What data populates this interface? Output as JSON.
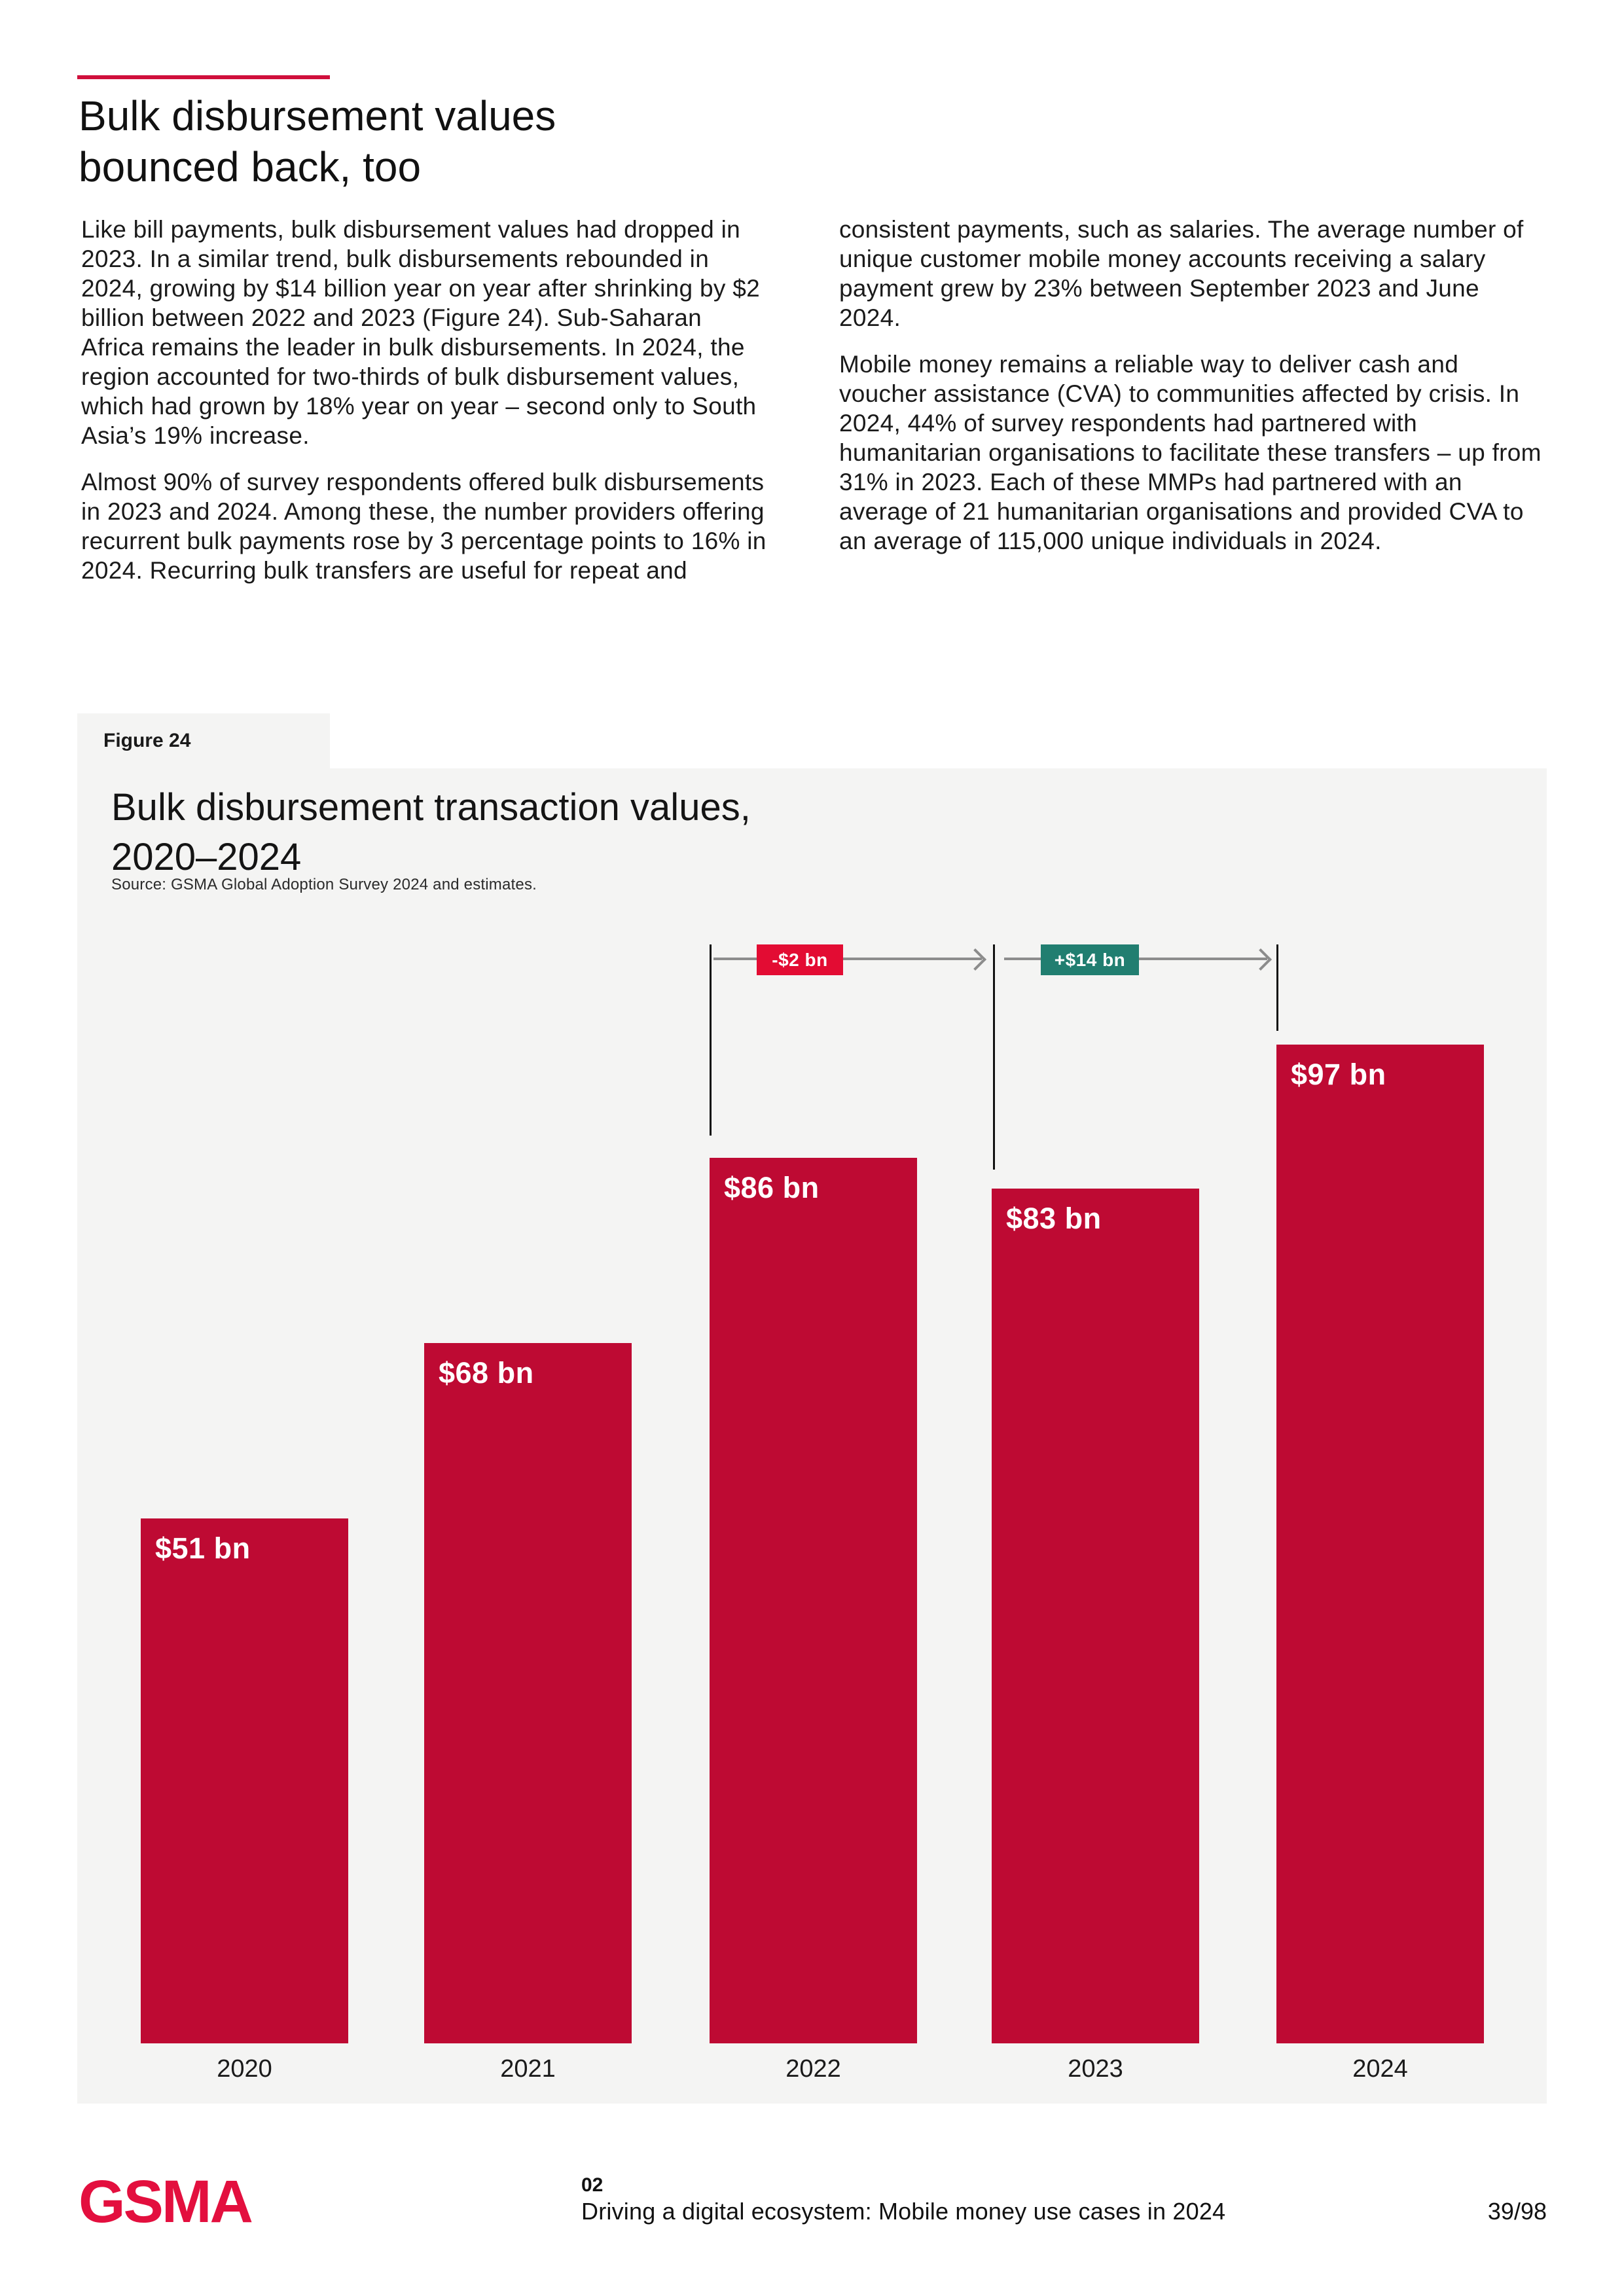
{
  "header": {
    "title_line1": "Bulk disbursement values",
    "title_line2": "bounced back, too"
  },
  "intro": {
    "col1_para1": "Like bill payments, bulk disbursement values had dropped in 2023. In a similar trend, bulk disbursements rebounded in 2024, growing by $14 billion year on year after shrinking by $2 billion between 2022 and 2023 (Figure 24). Sub-Saharan Africa remains the leader in bulk disbursements. In 2024, the region accounted for two-thirds of bulk disbursement values, which had grown by 18% year on year – second only to South Asia’s 19% increase.",
    "col1_para2": "Almost 90% of survey respondents offered bulk disbursements in 2023 and 2024. Among these, the number providers offering recurrent bulk payments rose by 3 percentage points to 16% in 2024. Recurring bulk transfers are useful for repeat and",
    "col2_para1": "consistent payments, such as salaries. The average number of unique customer mobile money accounts receiving a salary payment grew by 23% between September 2023 and June 2024.",
    "col2_para2": "Mobile money remains a reliable way to deliver cash and voucher assistance (CVA) to communities affected by crisis. In 2024, 44% of survey respondents had partnered with humanitarian organisations to facilitate these transfers – up from 31% in 2023. Each of these MMPs had partnered with an average of 21 humanitarian organisations and provided CVA to an average of 115,000 unique individuals in 2024."
  },
  "figure": {
    "label": "Figure 24",
    "title_line1": "Bulk disbursement transaction values,",
    "title_line2": "2020–2024",
    "source": "Source: GSMA Global Adoption Survey 2024 and estimates."
  },
  "chart_data": {
    "type": "bar",
    "title": "Bulk disbursement transaction values, 2020–2024",
    "categories": [
      "2020",
      "2021",
      "2022",
      "2023",
      "2024"
    ],
    "values": [
      51,
      68,
      86,
      83,
      97
    ],
    "bar_labels": [
      "$51 bn",
      "$68 bn",
      "$86 bn",
      "$83 bn",
      "$97 bn"
    ],
    "unit": "US$ billion",
    "ylim": [
      0,
      100
    ],
    "grid": false,
    "legend": "none",
    "bar_color": "#be0a33",
    "annotations": [
      {
        "label": "-$2 bn",
        "from": "2022",
        "to": "2023",
        "color": "#e30c33"
      },
      {
        "label": "+$14 bn",
        "from": "2023",
        "to": "2024",
        "color": "#217e70"
      }
    ]
  },
  "footer": {
    "logo": "GSMA",
    "chapter": "02",
    "doc_title": "Driving a digital ecosystem: Mobile money use cases in 2024",
    "page_number": "39/98"
  }
}
